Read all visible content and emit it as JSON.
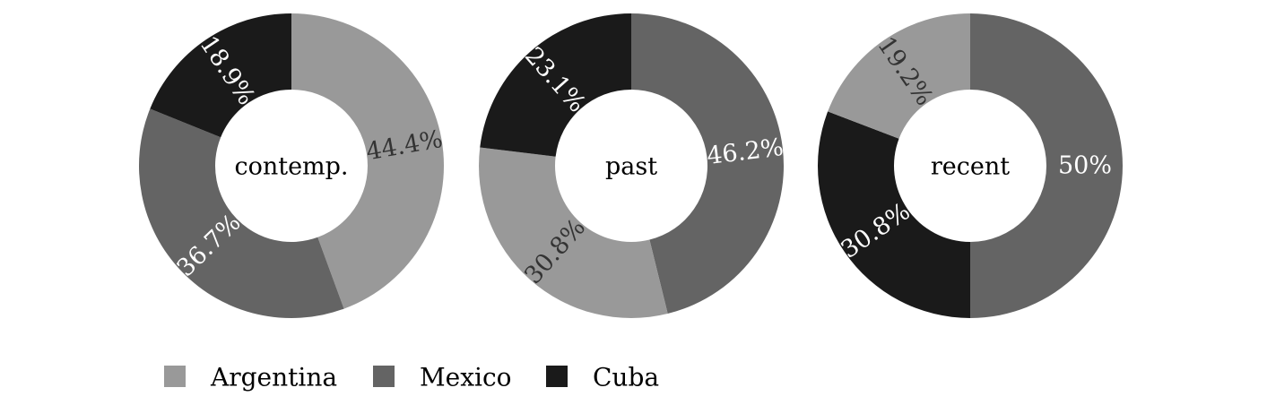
{
  "chart_data": {
    "type": "donut",
    "legend": {
      "position": "bottom-left",
      "entries": [
        {
          "name": "Argentina",
          "color": "#999999"
        },
        {
          "name": "Mexico",
          "color": "#646464"
        },
        {
          "name": "Cuba",
          "color": "#1a1a1a"
        }
      ]
    },
    "charts": [
      {
        "center_label": "contemp.",
        "slices": [
          {
            "name": "Argentina",
            "value": 44.4,
            "label": "44.4%",
            "color": "#999999",
            "label_color": "#333333"
          },
          {
            "name": "Mexico",
            "value": 36.7,
            "label": "36.7%",
            "color": "#646464",
            "label_color": "#ffffff"
          },
          {
            "name": "Cuba",
            "value": 18.9,
            "label": "18.9%",
            "color": "#1a1a1a",
            "label_color": "#ffffff"
          }
        ]
      },
      {
        "center_label": "past",
        "slices": [
          {
            "name": "Mexico",
            "value": 46.2,
            "label": "46.2%",
            "color": "#646464",
            "label_color": "#ffffff"
          },
          {
            "name": "Argentina",
            "value": 30.8,
            "label": "30.8%",
            "color": "#999999",
            "label_color": "#333333"
          },
          {
            "name": "Cuba",
            "value": 23.1,
            "label": "23.1%",
            "color": "#1a1a1a",
            "label_color": "#ffffff"
          }
        ]
      },
      {
        "center_label": "recent",
        "slices": [
          {
            "name": "Mexico",
            "value": 50,
            "label": "50%",
            "color": "#646464",
            "label_color": "#ffffff"
          },
          {
            "name": "Cuba",
            "value": 30.8,
            "label": "30.8%",
            "color": "#1a1a1a",
            "label_color": "#ffffff"
          },
          {
            "name": "Argentina",
            "value": 19.2,
            "label": "19.2%",
            "color": "#999999",
            "label_color": "#333333"
          }
        ]
      }
    ]
  }
}
